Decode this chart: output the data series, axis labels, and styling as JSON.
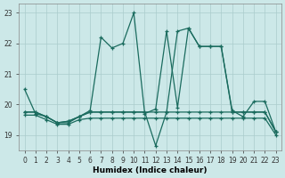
{
  "xlabel": "Humidex (Indice chaleur)",
  "xlim": [
    -0.5,
    23.5
  ],
  "ylim": [
    18.5,
    23.3
  ],
  "yticks": [
    19,
    20,
    21,
    22,
    23
  ],
  "xticks": [
    0,
    1,
    2,
    3,
    4,
    5,
    6,
    7,
    8,
    9,
    10,
    11,
    12,
    13,
    14,
    15,
    16,
    17,
    18,
    19,
    20,
    21,
    22,
    23
  ],
  "bg_color": "#cce8e8",
  "grid_color": "#aacccc",
  "line_color": "#1a6b5e",
  "series": {
    "s1": [
      20.5,
      19.7,
      19.6,
      19.4,
      19.4,
      19.6,
      19.8,
      22.2,
      21.85,
      22.0,
      23.0,
      19.7,
      19.85,
      22.4,
      19.9,
      22.5,
      21.9,
      21.9,
      21.9,
      19.8,
      19.6,
      20.1,
      20.1,
      19.1
    ],
    "s2": [
      19.75,
      19.75,
      19.6,
      19.4,
      19.45,
      19.6,
      19.75,
      19.75,
      19.75,
      19.75,
      19.75,
      19.75,
      19.75,
      19.75,
      19.75,
      19.75,
      19.75,
      19.75,
      19.75,
      19.75,
      19.75,
      19.75,
      19.75,
      19.1
    ],
    "s3": [
      19.75,
      19.75,
      19.6,
      19.4,
      19.45,
      19.6,
      19.75,
      19.75,
      19.75,
      19.75,
      19.75,
      19.75,
      18.65,
      19.75,
      22.4,
      22.5,
      21.9,
      21.9,
      21.9,
      19.75,
      19.75,
      19.75,
      19.75,
      19.1
    ],
    "s4": [
      19.65,
      19.65,
      19.5,
      19.35,
      19.35,
      19.5,
      19.55,
      19.55,
      19.55,
      19.55,
      19.55,
      19.55,
      19.55,
      19.55,
      19.55,
      19.55,
      19.55,
      19.55,
      19.55,
      19.55,
      19.55,
      19.55,
      19.55,
      19.0
    ]
  }
}
